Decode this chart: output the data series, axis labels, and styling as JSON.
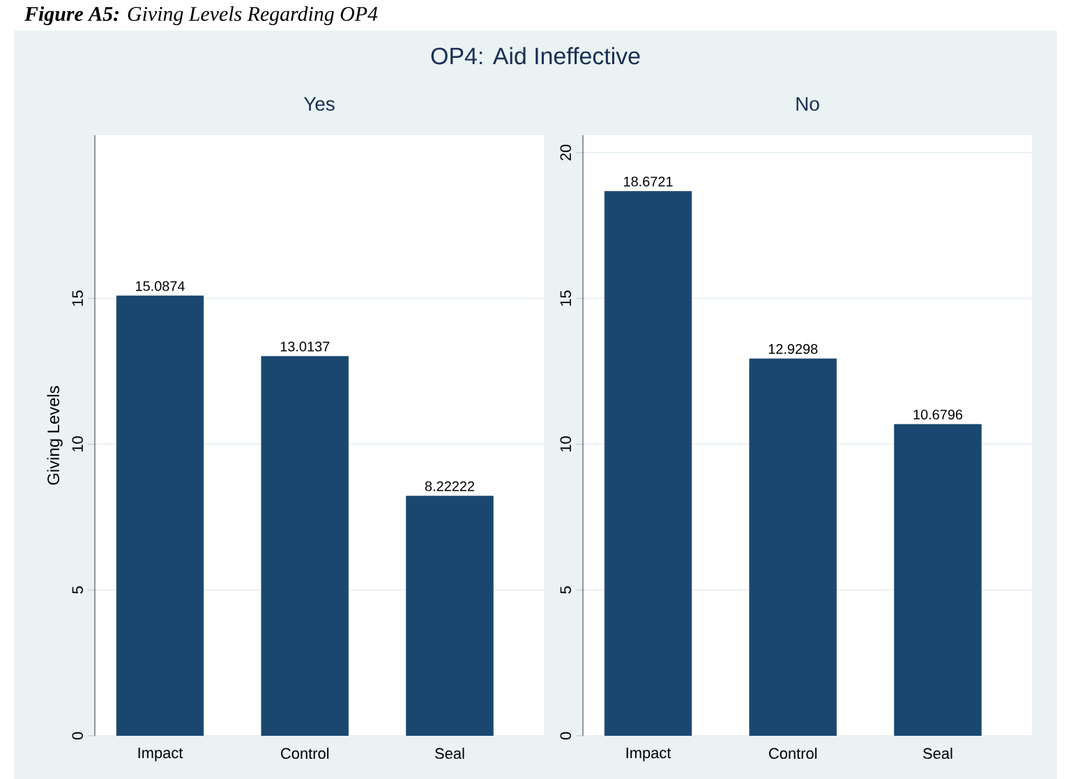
{
  "chart_data": [
    {
      "type": "other",
      "title": "OP4: Aid Ineffective",
      "annotations": [
        "**Figure A5:** Giving Levels Regarding OP4"
      ]
    },
    {
      "type": "bar",
      "title": "Yes",
      "ylabel": "Giving Levels",
      "categories": [
        "Impact",
        "Control",
        "Seal"
      ],
      "values": [
        15.0874,
        13.0137,
        8.22222
      ],
      "color": "#1a476f",
      "ylim": [
        0,
        20.6
      ],
      "yticks": [
        0,
        5,
        10,
        15
      ],
      "grid": "y",
      "data_labels": true
    },
    {
      "type": "bar",
      "title": "No",
      "categories": [
        "Impact",
        "Control",
        "Seal"
      ],
      "values": [
        18.6721,
        12.9298,
        10.6796
      ],
      "color": "#1a476f",
      "ylim": [
        0,
        20.6
      ],
      "yticks": [
        0,
        5,
        10,
        15,
        20
      ],
      "grid": "y",
      "data_labels": true
    }
  ]
}
